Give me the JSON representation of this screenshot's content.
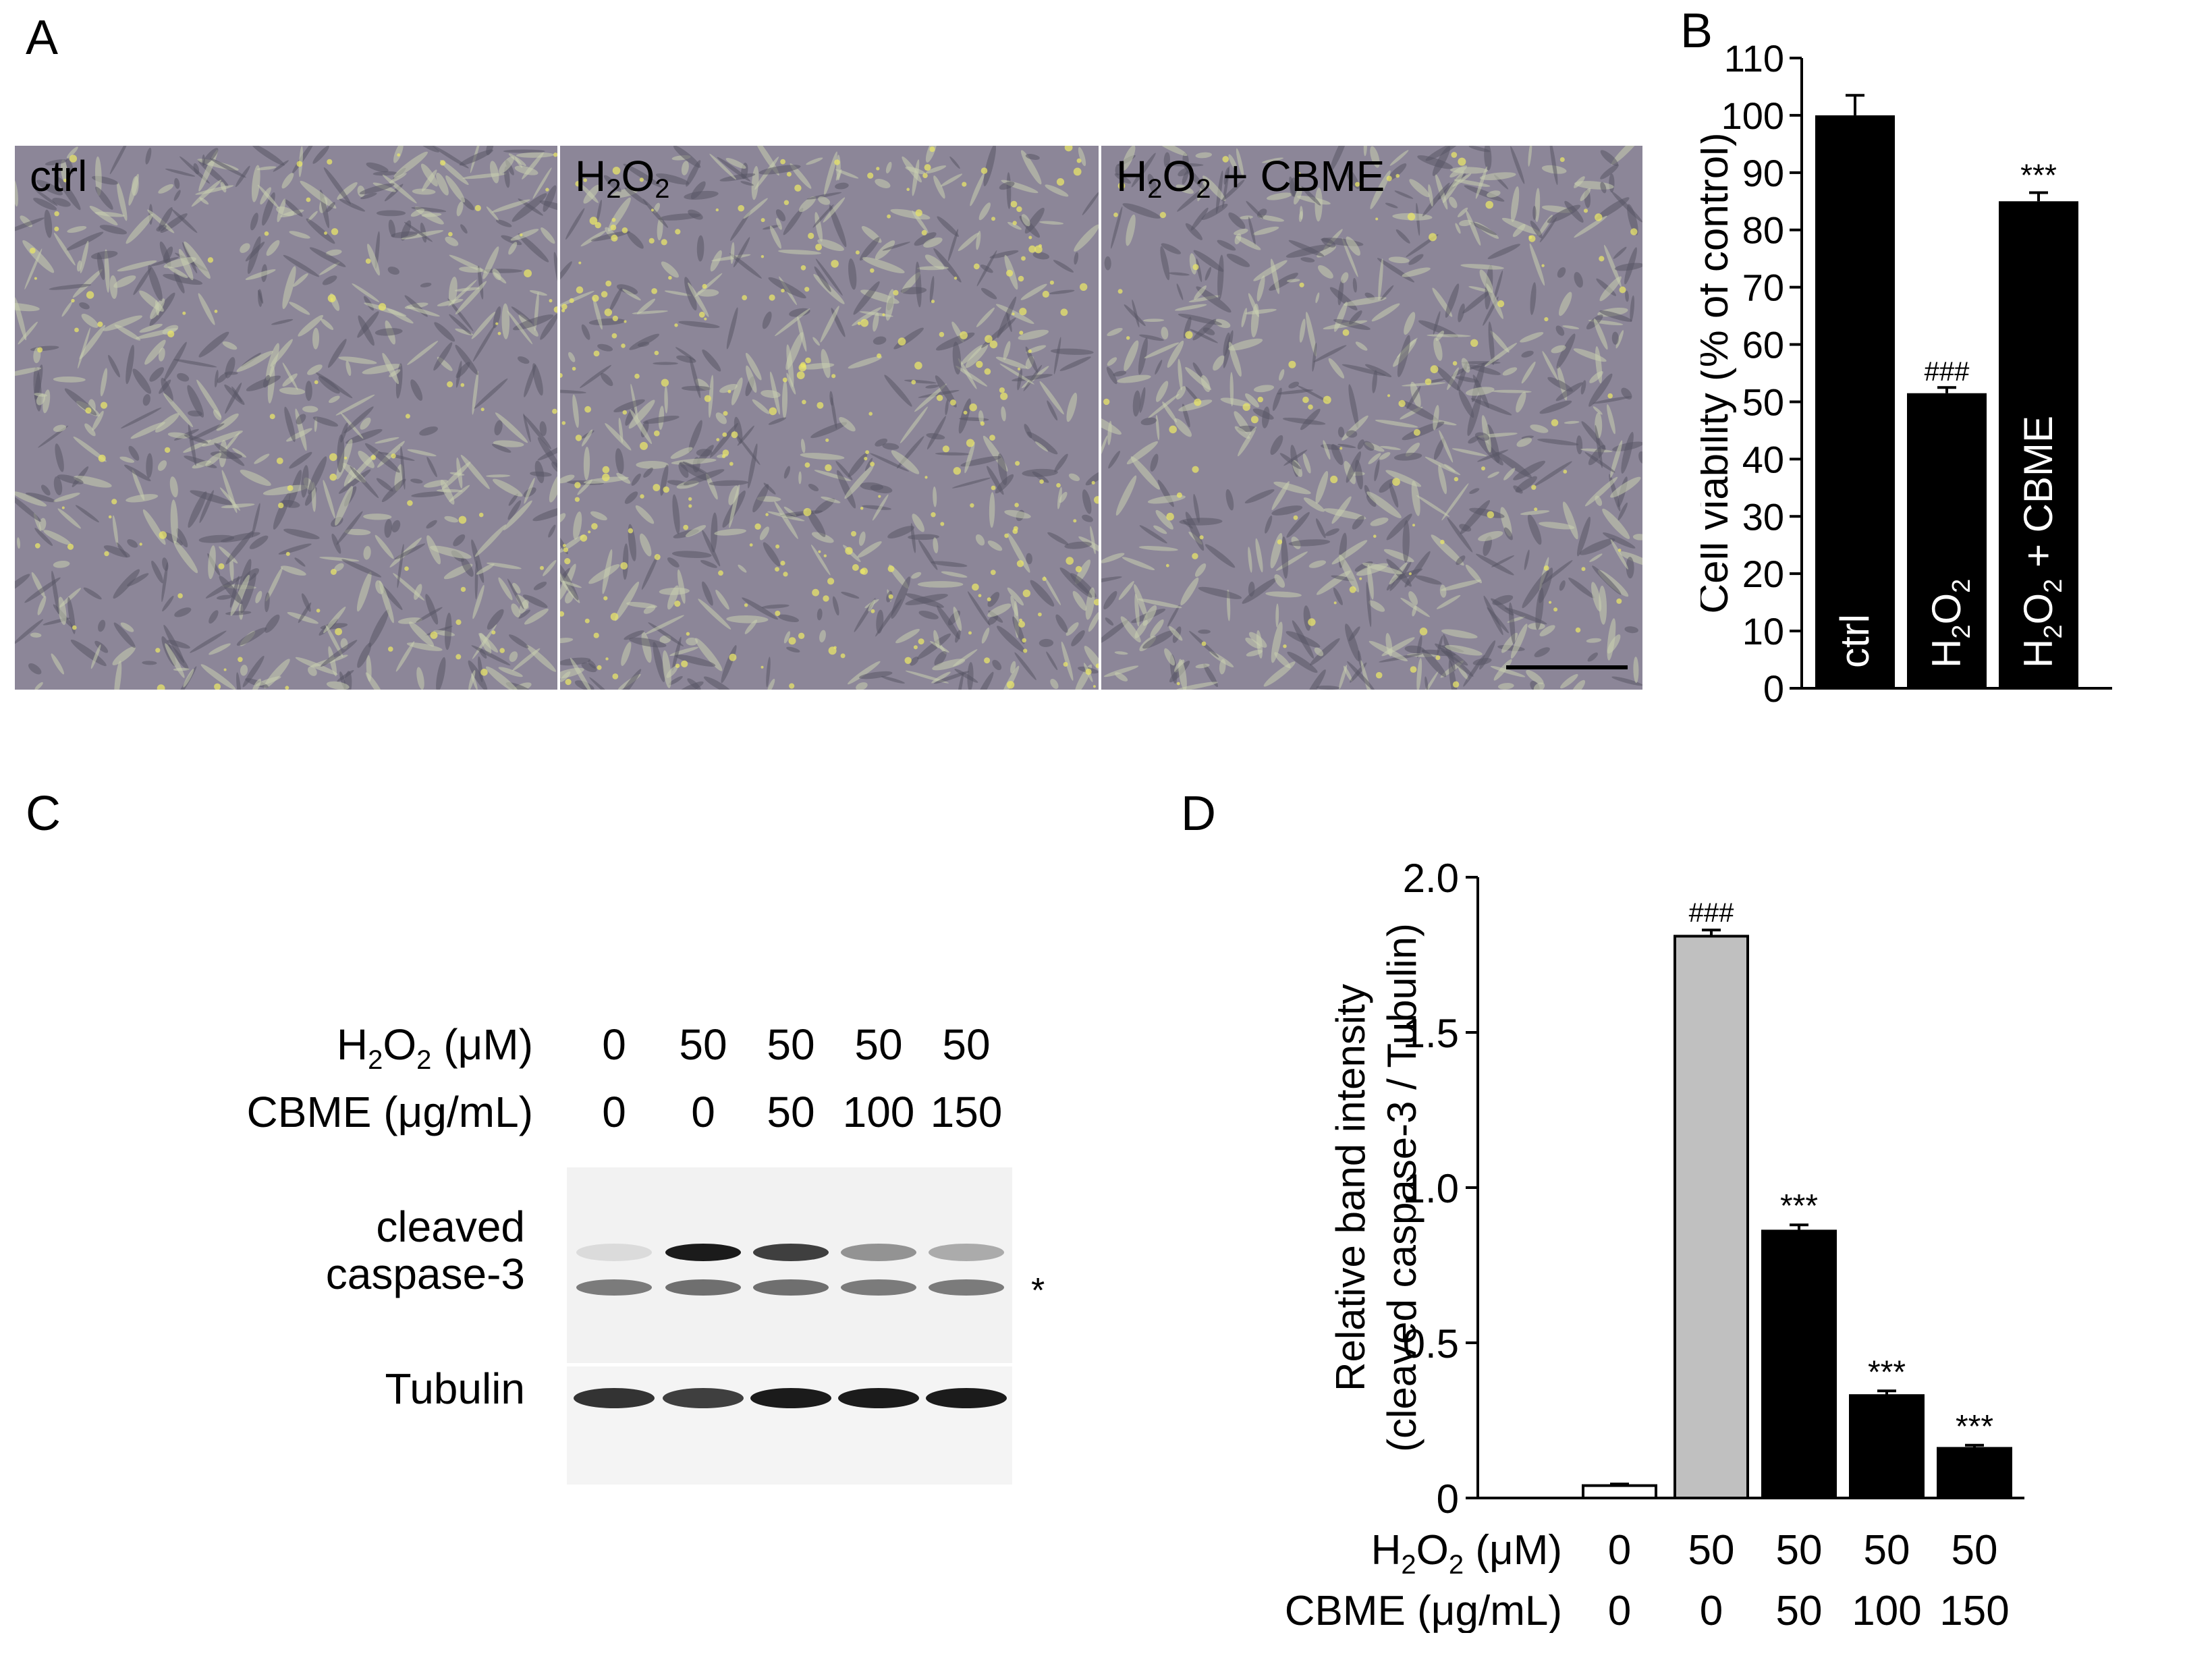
{
  "panel_letters": {
    "a": "A",
    "b": "B",
    "c": "C",
    "d": "D"
  },
  "panel_a": {
    "images": [
      {
        "label_main": "ctrl",
        "label_sub": "",
        "label_tail": ""
      },
      {
        "label_main": "H",
        "label_sub": "2",
        "label_mid": "O",
        "label_sub2": "2",
        "label_tail": ""
      },
      {
        "label_main": "H",
        "label_sub": "2",
        "label_mid": "O",
        "label_sub2": "2",
        "label_tail": " + CBME"
      }
    ],
    "colors": {
      "background": "#8c8698",
      "cells": "#c9cfb0",
      "highlight": "#e8e46a",
      "dark": "#5a5866"
    }
  },
  "panel_c": {
    "row1_label": "H",
    "row1_sub": "2",
    "row1_mid": "O",
    "row1_sub2": "2",
    "row1_tail": " (μM)",
    "row2_label": "CBME (μg/mL)",
    "h2o2_values": [
      "0",
      "50",
      "50",
      "50",
      "50"
    ],
    "cbme_values": [
      "0",
      "0",
      "50",
      "100",
      "150"
    ],
    "band_label_1a": "cleaved",
    "band_label_1b": "caspase-3",
    "band_label_2": "Tubulin",
    "asterisk": "*",
    "caspase_intensity": [
      0.15,
      0.95,
      0.8,
      0.45,
      0.35
    ],
    "lower_band_intensity": [
      0.55,
      0.6,
      0.6,
      0.55,
      0.55
    ],
    "tubulin_intensity": [
      0.85,
      0.8,
      0.95,
      0.95,
      0.95
    ]
  },
  "chart_data": [
    {
      "panel": "B",
      "type": "bar",
      "categories": [
        "ctrl",
        "H2O2",
        "H2O2 + CBME"
      ],
      "category_labels": [
        {
          "main": "ctrl",
          "sub": "",
          "mid": "",
          "sub2": "",
          "tail": ""
        },
        {
          "main": "H",
          "sub": "2",
          "mid": "O",
          "sub2": "2",
          "tail": ""
        },
        {
          "main": "H",
          "sub": "2",
          "mid": "O",
          "sub2": "2",
          "tail": " + CBME"
        }
      ],
      "values": [
        100,
        51.5,
        85
      ],
      "errors": [
        3.5,
        1,
        1.5
      ],
      "annotations": [
        "",
        "###",
        "***"
      ],
      "ylabel": "Cell viability (% of control)",
      "ylim": [
        0,
        110
      ],
      "yticks": [
        "0",
        "10",
        "20",
        "30",
        "40",
        "50",
        "60",
        "70",
        "80",
        "90",
        "100",
        "110"
      ],
      "bar_color": "#000000"
    },
    {
      "panel": "D",
      "type": "bar",
      "categories": [
        "0/0",
        "50/0",
        "50/50",
        "50/100",
        "50/150"
      ],
      "values": [
        0.04,
        1.81,
        0.86,
        0.33,
        0.16
      ],
      "errors": [
        0.005,
        0.02,
        0.02,
        0.015,
        0.01
      ],
      "bar_fills": [
        "#ffffff",
        "#c0c0c0",
        "#000000",
        "#000000",
        "#000000"
      ],
      "annotations": [
        "",
        "###",
        "***",
        "***",
        "***"
      ],
      "ylabel_line1": "Relative band intensity",
      "ylabel_line2": "(cleaved caspase-3 / Tubulin)",
      "ylim": [
        0,
        2.0
      ],
      "yticks": [
        "0",
        "0.5",
        "1.0",
        "1.5",
        "2.0"
      ],
      "x_row1_label": {
        "main": "H",
        "sub": "2",
        "mid": "O",
        "sub2": "2",
        "tail": " (μM)"
      },
      "x_row2_label": "CBME (μg/mL)",
      "h2o2_values": [
        "0",
        "50",
        "50",
        "50",
        "50"
      ],
      "cbme_values": [
        "0",
        "0",
        "50",
        "100",
        "150"
      ]
    }
  ]
}
